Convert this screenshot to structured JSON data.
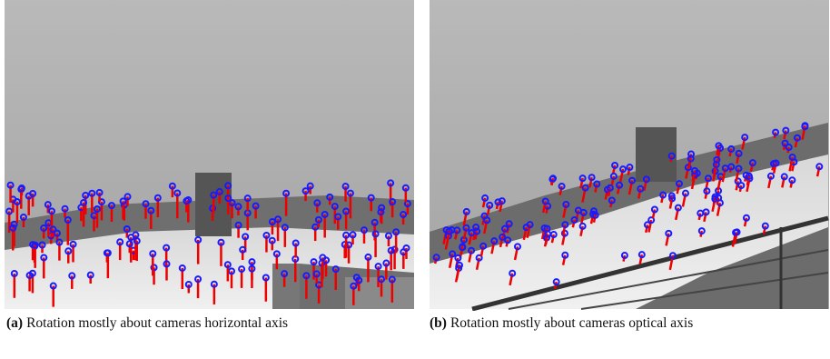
{
  "captions": [
    {
      "label": "(a)",
      "text": "Rotation mostly about cameras horizontal axis"
    },
    {
      "label": "(b)",
      "text": "Rotation mostly about cameras optical axis"
    }
  ]
}
